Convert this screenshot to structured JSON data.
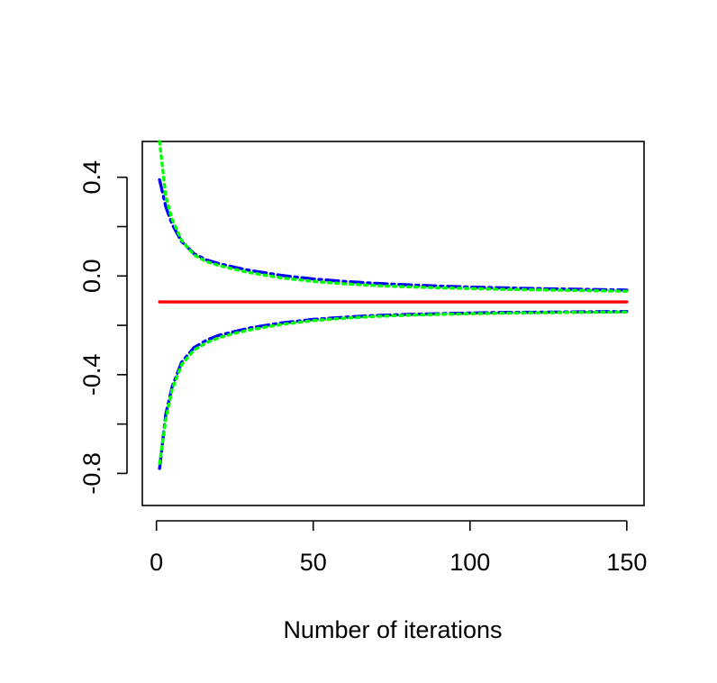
{
  "chart_data": {
    "type": "line",
    "title": "",
    "xlabel": "Number of iterations",
    "ylabel": "",
    "xlim": [
      -4.5,
      155.5
    ],
    "ylim": [
      -0.93,
      0.545
    ],
    "x_ticks": [
      0,
      50,
      100,
      150
    ],
    "x_tick_labels": [
      "0",
      "50",
      "100",
      "150"
    ],
    "y_ticks": [
      -0.8,
      -0.6,
      -0.4,
      -0.2,
      0.0,
      0.2,
      0.4
    ],
    "y_tick_labels": [
      "-0.8",
      "",
      "-0.4",
      "",
      "0.0",
      "",
      "0.4"
    ],
    "grid": false,
    "legend": "none",
    "series": [
      {
        "color": "#ff0000",
        "style": "solid",
        "x": [
          1,
          150
        ],
        "y": [
          -0.105,
          -0.105
        ]
      },
      {
        "color": "#0000ff",
        "style": "longdash-dot",
        "x": [
          1,
          3,
          5,
          8,
          12,
          16,
          20,
          25,
          30,
          40,
          50,
          60,
          70,
          80,
          90,
          100,
          110,
          120,
          130,
          140,
          150
        ],
        "y": [
          0.39,
          0.28,
          0.21,
          0.14,
          0.09,
          0.065,
          0.05,
          0.035,
          0.022,
          0.002,
          -0.012,
          -0.022,
          -0.03,
          -0.036,
          -0.041,
          -0.045,
          -0.048,
          -0.051,
          -0.053,
          -0.055,
          -0.057
        ]
      },
      {
        "color": "#0000ff",
        "style": "longdash-dot",
        "x": [
          1,
          3,
          5,
          8,
          12,
          16,
          20,
          25,
          30,
          40,
          50,
          60,
          70,
          80,
          90,
          100,
          110,
          120,
          130,
          140,
          150
        ],
        "y": [
          -0.78,
          -0.56,
          -0.45,
          -0.35,
          -0.29,
          -0.26,
          -0.24,
          -0.225,
          -0.21,
          -0.19,
          -0.176,
          -0.167,
          -0.16,
          -0.156,
          -0.153,
          -0.15,
          -0.148,
          -0.147,
          -0.146,
          -0.145,
          -0.144
        ]
      },
      {
        "color": "#00ff00",
        "style": "dotted",
        "x": [
          1,
          3,
          5,
          8,
          12,
          16,
          20,
          25,
          30,
          40,
          50,
          60,
          70,
          80,
          90,
          100,
          110,
          120,
          130,
          140,
          150
        ],
        "y": [
          0.545,
          0.32,
          0.23,
          0.145,
          0.085,
          0.058,
          0.042,
          0.027,
          0.013,
          -0.008,
          -0.022,
          -0.032,
          -0.039,
          -0.044,
          -0.048,
          -0.051,
          -0.054,
          -0.056,
          -0.058,
          -0.06,
          -0.062
        ]
      },
      {
        "color": "#00ff00",
        "style": "dotted",
        "x": [
          1,
          3,
          5,
          8,
          12,
          16,
          20,
          25,
          30,
          40,
          50,
          60,
          70,
          80,
          90,
          100,
          110,
          120,
          130,
          140,
          150
        ],
        "y": [
          -0.76,
          -0.58,
          -0.46,
          -0.36,
          -0.3,
          -0.27,
          -0.25,
          -0.232,
          -0.218,
          -0.196,
          -0.181,
          -0.171,
          -0.164,
          -0.159,
          -0.156,
          -0.153,
          -0.151,
          -0.149,
          -0.148,
          -0.147,
          -0.146
        ]
      }
    ]
  }
}
